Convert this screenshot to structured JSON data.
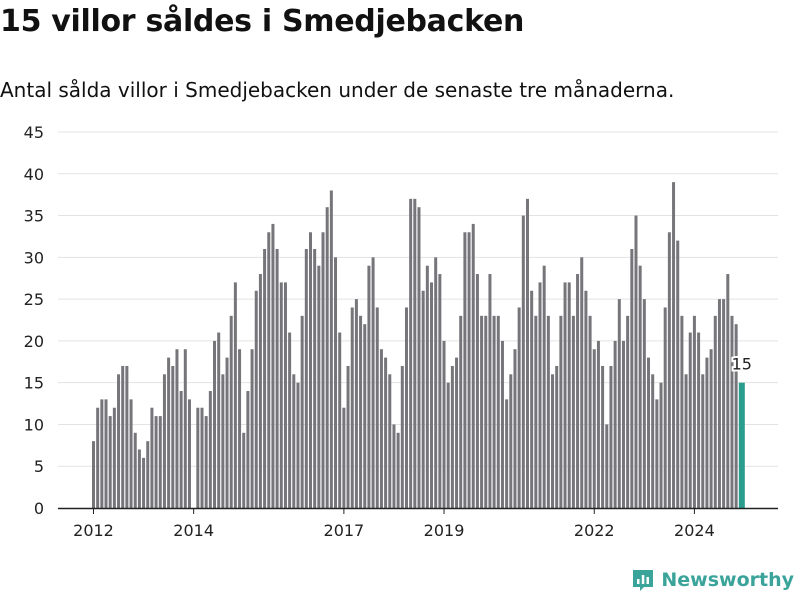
{
  "header": {
    "title": "15 villor såldes i Smedjebacken",
    "subtitle": "Antal sålda villor i Smedjebacken under de senaste tre månaderna."
  },
  "brand": {
    "name": "Newsworthy",
    "icon": "newsworthy-logo-icon",
    "color": "#3aa39a"
  },
  "colors": {
    "bar": "#76757a",
    "highlight": "#2a9d8f",
    "grid": "#e3e3e3",
    "axis": "#222222"
  },
  "chart_data": {
    "type": "bar",
    "title": "15 villor såldes i Smedjebacken",
    "subtitle": "Antal sålda villor i Smedjebacken under de senaste tre månaderna.",
    "xlabel": "",
    "ylabel": "",
    "ylim": [
      0,
      45
    ],
    "yticks": [
      0,
      5,
      10,
      15,
      20,
      25,
      30,
      35,
      40,
      45
    ],
    "xticks": [
      "2012",
      "2014",
      "2017",
      "2019",
      "2022",
      "2024"
    ],
    "grid": true,
    "start": "2012-01",
    "frequency": "monthly",
    "values": [
      8,
      12,
      13,
      13,
      11,
      12,
      16,
      17,
      17,
      13,
      9,
      7,
      6,
      8,
      12,
      11,
      11,
      16,
      18,
      17,
      19,
      14,
      19,
      13,
      null,
      12,
      12,
      11,
      14,
      20,
      21,
      16,
      18,
      23,
      27,
      19,
      9,
      14,
      19,
      26,
      28,
      31,
      33,
      34,
      31,
      27,
      27,
      21,
      16,
      15,
      23,
      31,
      33,
      31,
      29,
      33,
      36,
      38,
      30,
      21,
      12,
      17,
      24,
      25,
      23,
      22,
      29,
      30,
      24,
      19,
      18,
      16,
      10,
      9,
      17,
      24,
      37,
      37,
      36,
      26,
      29,
      27,
      30,
      28,
      20,
      15,
      17,
      18,
      23,
      33,
      33,
      34,
      28,
      23,
      23,
      28,
      23,
      23,
      20,
      13,
      16,
      19,
      24,
      35,
      37,
      26,
      23,
      27,
      29,
      23,
      16,
      17,
      23,
      27,
      27,
      23,
      28,
      30,
      26,
      23,
      19,
      20,
      17,
      10,
      17,
      20,
      25,
      20,
      23,
      31,
      35,
      29,
      25,
      18,
      16,
      13,
      15,
      24,
      33,
      39,
      32,
      23,
      16,
      21,
      23,
      21,
      16,
      18,
      19,
      23,
      25,
      25,
      28,
      23,
      22,
      15
    ],
    "highlight_label": "15"
  }
}
